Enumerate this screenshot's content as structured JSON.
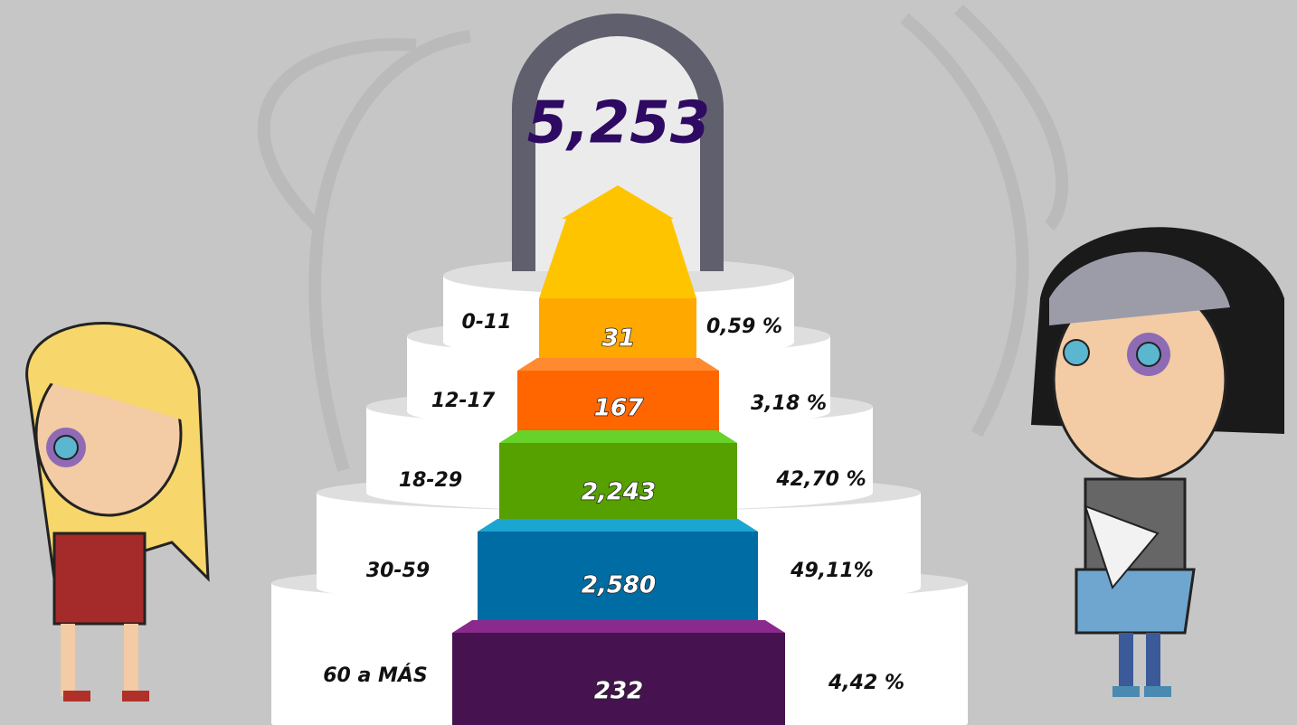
{
  "total": "5,253",
  "tiers": [
    {
      "age": "0-11",
      "count": "31",
      "percent": "0,59 %"
    },
    {
      "age": "12-17",
      "count": "167",
      "percent": "3,18 %"
    },
    {
      "age": "18-29",
      "count": "2,243",
      "percent": "42,70 %"
    },
    {
      "age": "30-59",
      "count": "2,580",
      "percent": "49,11%"
    },
    {
      "age": "60 a MÁS",
      "count": "232",
      "percent": "4,42 %"
    }
  ]
}
